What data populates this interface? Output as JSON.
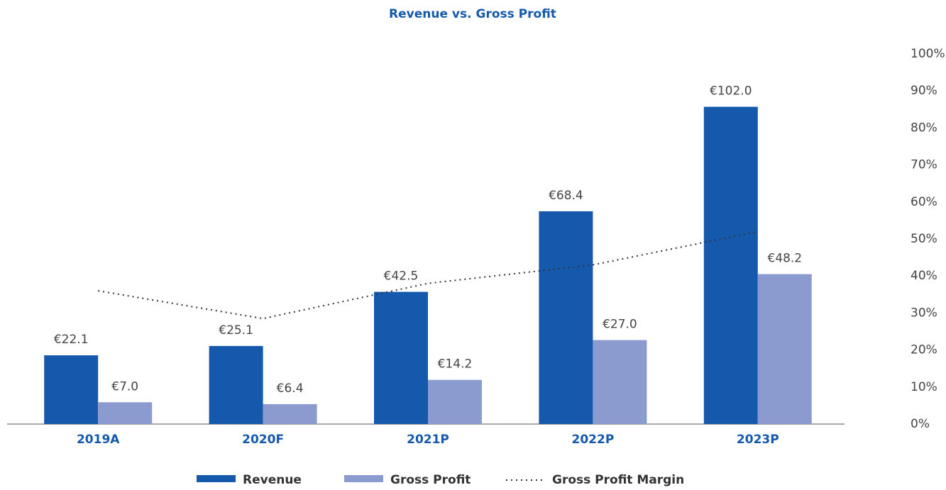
{
  "chart_data": {
    "type": "bar",
    "title": "Revenue vs. Gross Profit",
    "categories": [
      "2019A",
      "2020F",
      "2021P",
      "2022P",
      "2023P"
    ],
    "series": [
      {
        "name": "Revenue",
        "color": "#1459ab",
        "values": [
          22.1,
          25.1,
          42.5,
          68.4,
          102.0
        ],
        "value_labels": [
          "€22.1",
          "€25.1",
          "€42.5",
          "€68.4",
          "€102.0"
        ]
      },
      {
        "name": "Gross Profit",
        "color": "#8b9bd0",
        "values": [
          7.0,
          6.4,
          14.2,
          27.0,
          48.2
        ],
        "value_labels": [
          "€7.0",
          "€6.4",
          "€14.2",
          "€27.0",
          "€48.2"
        ]
      },
      {
        "name": "Gross Profit Margin",
        "type": "line",
        "axis": "y2",
        "color": "#333333",
        "values": [
          36,
          28.5,
          38,
          43,
          52
        ]
      }
    ],
    "ylim": [
      0,
      119
    ],
    "y2lim": [
      0,
      100
    ],
    "y2ticks": [
      {
        "value": 0,
        "label": "0%"
      },
      {
        "value": 10,
        "label": "10%"
      },
      {
        "value": 20,
        "label": "20%"
      },
      {
        "value": 30,
        "label": "30%"
      },
      {
        "value": 40,
        "label": "40%"
      },
      {
        "value": 50,
        "label": "50%"
      },
      {
        "value": 60,
        "label": "60%"
      },
      {
        "value": 70,
        "label": "70%"
      },
      {
        "value": 80,
        "label": "80%"
      },
      {
        "value": 90,
        "label": "90%"
      },
      {
        "value": 100,
        "label": "100%"
      }
    ],
    "legend": "bottom"
  }
}
